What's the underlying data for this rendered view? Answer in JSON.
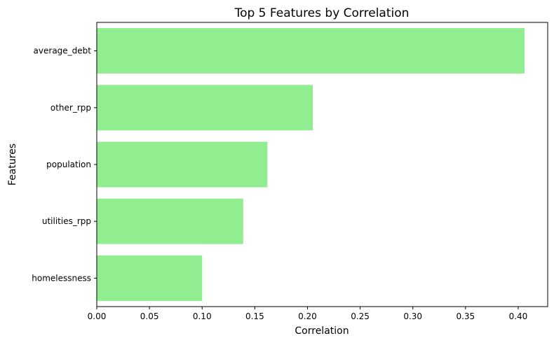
{
  "chart_data": {
    "type": "bar",
    "orientation": "horizontal",
    "title": "Top 5 Features by Correlation",
    "xlabel": "Correlation",
    "ylabel": "Features",
    "categories": [
      "average_debt",
      "other_rpp",
      "population",
      "utilities_rpp",
      "homelessness"
    ],
    "values": [
      0.406,
      0.205,
      0.162,
      0.139,
      0.1
    ],
    "xlim": [
      0,
      0.428
    ],
    "xticks": [
      0.0,
      0.05,
      0.1,
      0.15,
      0.2,
      0.25,
      0.3,
      0.35,
      0.4
    ],
    "xtick_labels": [
      "0.00",
      "0.05",
      "0.10",
      "0.15",
      "0.20",
      "0.25",
      "0.30",
      "0.35",
      "0.40"
    ],
    "bar_color": "#90ee90",
    "grid": false,
    "legend": "none"
  }
}
